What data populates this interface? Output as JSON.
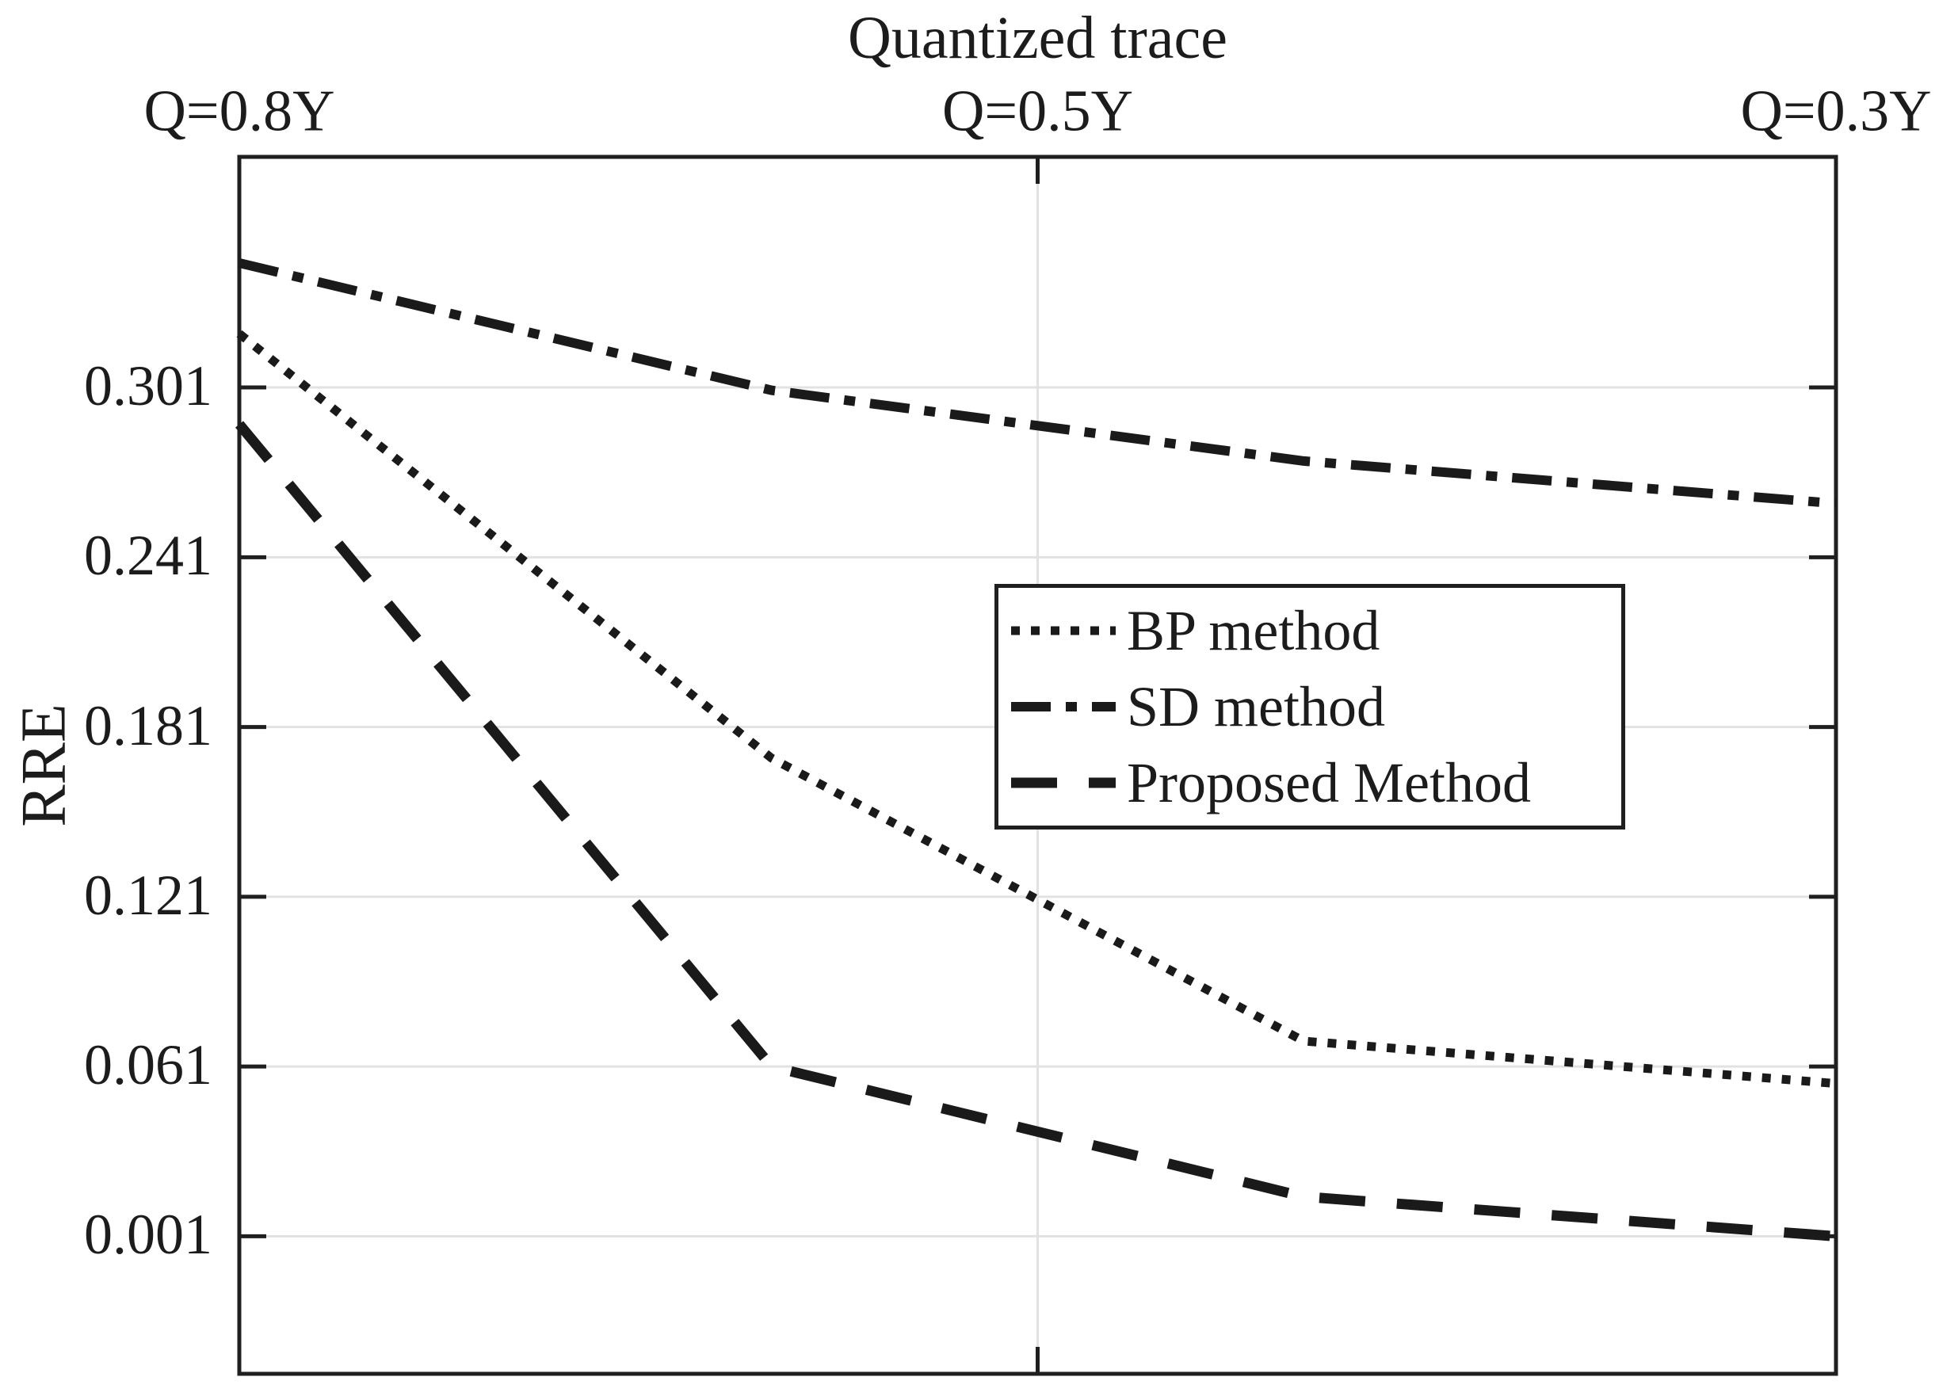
{
  "figure": {
    "title": "Quantized trace",
    "y_axis_label": "RRE"
  },
  "legend": {
    "items": [
      {
        "label": "BP method",
        "style": "dotted"
      },
      {
        "label": "SD method",
        "style": "dashdot"
      },
      {
        "label": "Proposed Method",
        "style": "dashed"
      }
    ]
  },
  "colors": {
    "line": "#1a1a1a",
    "grid": "#e2e2e2",
    "frame": "#1f1f1f",
    "text": "#1c1c1c",
    "background": "#ffffff"
  },
  "chart_data": {
    "type": "line",
    "title": "Quantized trace",
    "xlabel": "",
    "ylabel": "RRE",
    "grid": "on",
    "legend_position": "inside middle-right",
    "x": [
      1,
      2,
      3,
      4
    ],
    "xlim": [
      1,
      4
    ],
    "ylim": [
      -0.0476,
      0.3825
    ],
    "xticks": [
      {
        "position": 1,
        "label": "Q=0.8Y"
      },
      {
        "position": 2.5,
        "label": "Q=0.5Y"
      },
      {
        "position": 4,
        "label": "Q=0.3Y"
      }
    ],
    "ytick_values": [
      0.301,
      0.241,
      0.181,
      0.121,
      0.061,
      0.001
    ],
    "ytick_labels": [
      "0.301",
      "0.241",
      "0.181",
      "0.121",
      "0.061",
      "0.001"
    ],
    "series": [
      {
        "name": "BP method",
        "style": "dotted",
        "values": [
          0.32,
          0.17,
          0.07,
          0.055
        ]
      },
      {
        "name": "SD method",
        "style": "dashdot",
        "values": [
          0.345,
          0.3,
          0.275,
          0.26
        ]
      },
      {
        "name": "Proposed Method",
        "style": "dashed",
        "values": [
          0.288,
          0.061,
          0.015,
          0.001
        ]
      }
    ]
  }
}
